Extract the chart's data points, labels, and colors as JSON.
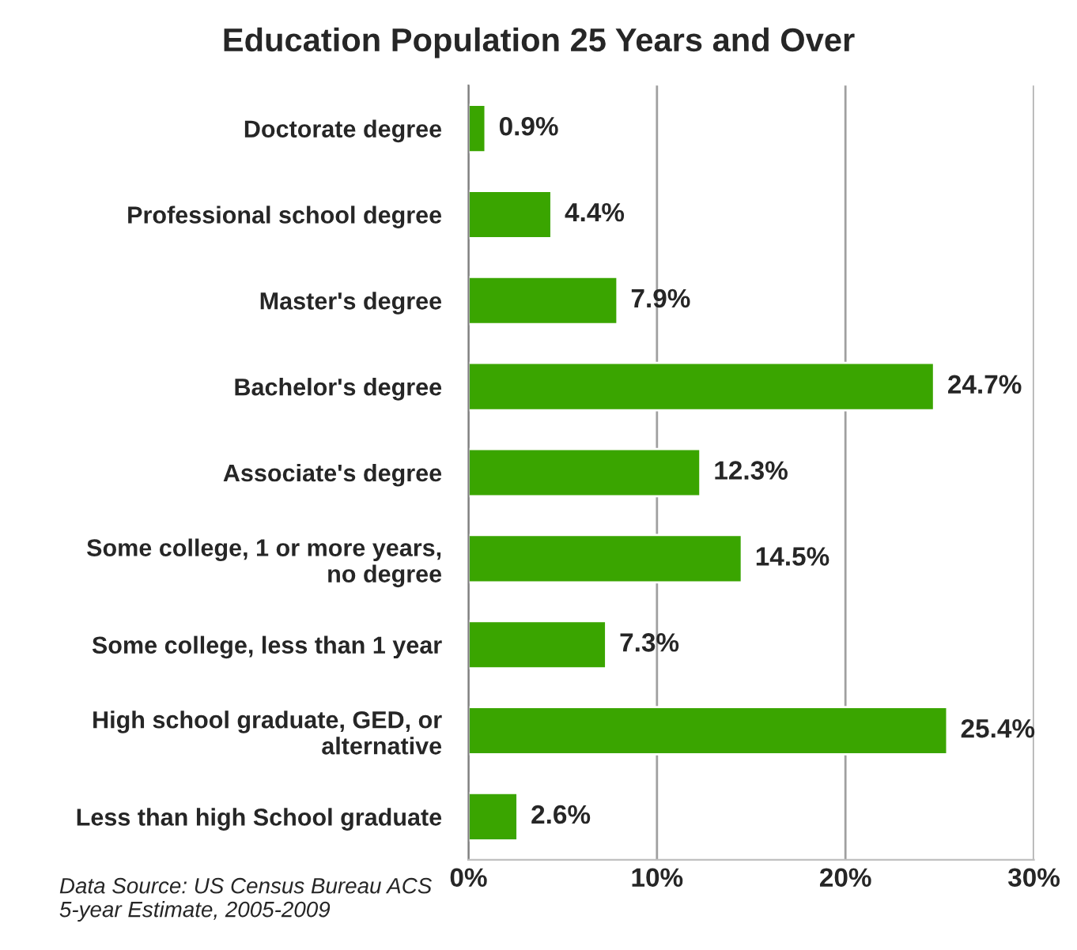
{
  "chart_data": {
    "type": "bar",
    "orientation": "horizontal",
    "title": "Education Population 25 Years and Over",
    "categories": [
      "Doctorate degree",
      "Professional school degree",
      "Master's degree",
      "Bachelor's degree",
      "Associate's degree",
      "Some college, 1 or more years,\nno degree",
      "Some college, less than 1 year",
      "High school graduate, GED, or\nalternative",
      "Less than high School graduate"
    ],
    "values": [
      0.9,
      4.4,
      7.9,
      24.7,
      12.3,
      14.5,
      7.3,
      25.4,
      2.6
    ],
    "value_labels": [
      "0.9%",
      "4.4%",
      "7.9%",
      "24.7%",
      "12.3%",
      "14.5%",
      "7.3%",
      "25.4%",
      "2.6%"
    ],
    "color": "#3aa500",
    "xlim": [
      0,
      30
    ],
    "xticks": [
      {
        "value": 0,
        "label": "0%"
      },
      {
        "value": 10,
        "label": "10%"
      },
      {
        "value": 20,
        "label": "20%"
      },
      {
        "value": 30,
        "label": "30%"
      }
    ],
    "grid": "x",
    "annotations": [
      "Data Source: US Census Bureau ACS\n5-year Estimate, 2005-2009"
    ]
  }
}
